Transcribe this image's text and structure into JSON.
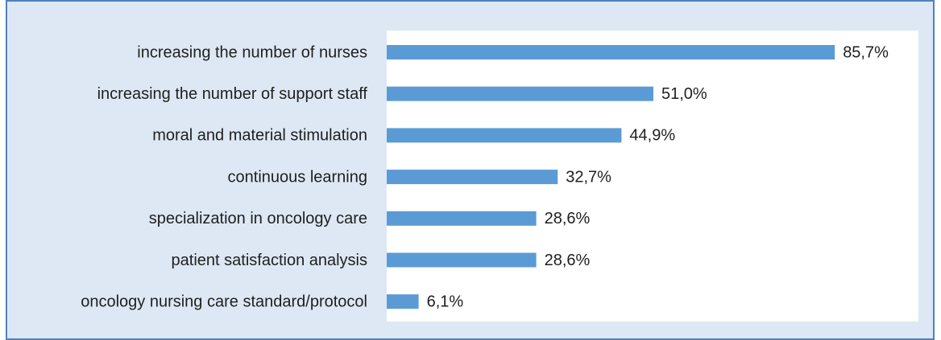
{
  "chart_data": {
    "type": "bar",
    "orientation": "horizontal",
    "categories": [
      "increasing the number of nurses",
      "increasing the number of support staff",
      "moral and material stimulation",
      "continuous learning",
      "specialization in oncology care",
      "patient satisfaction analysis",
      "oncology nursing care standard/protocol"
    ],
    "values": [
      85.7,
      51.0,
      44.9,
      32.7,
      28.6,
      28.6,
      6.1
    ],
    "value_labels": [
      "85,7%",
      "51,0%",
      "44,9%",
      "32,7%",
      "28,6%",
      "28,6%",
      "6,1%"
    ],
    "color": "#5b9bd5"
  }
}
